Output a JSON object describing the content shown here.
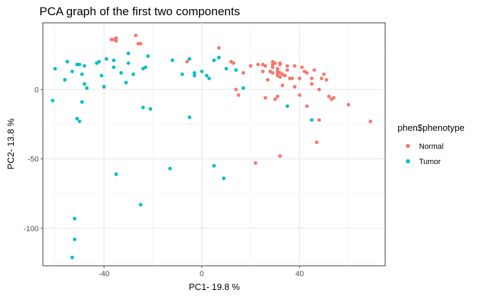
{
  "chart_data": {
    "type": "scatter",
    "title": "PCA graph of the first two components",
    "xlabel": "PC1- 19.8 %",
    "ylabel": "PC2- 13.8 %",
    "xlim": [
      -65,
      75
    ],
    "ylim": [
      -127,
      48
    ],
    "x_ticks": [
      -40,
      0,
      40
    ],
    "y_ticks": [
      -100,
      -50,
      0
    ],
    "grid": true,
    "legend": {
      "title": "phen$phenotype",
      "placement": "right"
    },
    "series": [
      {
        "name": "Normal",
        "color": "#F8766D",
        "points": [
          [
            -37,
            36
          ],
          [
            -36,
            36
          ],
          [
            -35,
            37
          ],
          [
            -35,
            35
          ],
          [
            -27,
            39
          ],
          [
            -26,
            33
          ],
          [
            -25,
            33
          ],
          [
            -6,
            20
          ],
          [
            7,
            30
          ],
          [
            12,
            20
          ],
          [
            13,
            19
          ],
          [
            14,
            0
          ],
          [
            15,
            -4
          ],
          [
            17,
            12
          ],
          [
            20,
            17
          ],
          [
            23,
            18
          ],
          [
            22,
            -53
          ],
          [
            25,
            18
          ],
          [
            25,
            13
          ],
          [
            26,
            17
          ],
          [
            26,
            -6
          ],
          [
            27,
            7
          ],
          [
            28,
            13
          ],
          [
            29,
            18
          ],
          [
            29,
            16
          ],
          [
            29,
            12
          ],
          [
            29,
            20
          ],
          [
            30,
            -7
          ],
          [
            30,
            19
          ],
          [
            31,
            15
          ],
          [
            31,
            13
          ],
          [
            31,
            11
          ],
          [
            31,
            10
          ],
          [
            31,
            -5
          ],
          [
            32,
            19
          ],
          [
            32,
            18
          ],
          [
            32,
            12
          ],
          [
            32,
            9
          ],
          [
            32,
            -48
          ],
          [
            33,
            11
          ],
          [
            33,
            3
          ],
          [
            34,
            10
          ],
          [
            35,
            17
          ],
          [
            35,
            14
          ],
          [
            36,
            8
          ],
          [
            37,
            8
          ],
          [
            38,
            17
          ],
          [
            38,
            2
          ],
          [
            40,
            8
          ],
          [
            40,
            -4
          ],
          [
            41,
            16
          ],
          [
            42,
            13
          ],
          [
            43,
            12
          ],
          [
            43,
            -12
          ],
          [
            45,
            8
          ],
          [
            45,
            4
          ],
          [
            46,
            14
          ],
          [
            47,
            -38
          ],
          [
            48,
            -22
          ],
          [
            48,
            0
          ],
          [
            49,
            8
          ],
          [
            50,
            11
          ],
          [
            51,
            7
          ],
          [
            52,
            -5
          ],
          [
            53,
            -7
          ],
          [
            54,
            -6
          ],
          [
            60,
            -11
          ],
          [
            69,
            -23
          ]
        ]
      },
      {
        "name": "Tumor",
        "color": "#00BFC4",
        "points": [
          [
            -61,
            -8
          ],
          [
            -60,
            15
          ],
          [
            -56,
            7
          ],
          [
            -55,
            20
          ],
          [
            -53,
            13
          ],
          [
            -51,
            -21
          ],
          [
            -51,
            18
          ],
          [
            -50,
            18
          ],
          [
            -50,
            -23
          ],
          [
            -49,
            -9
          ],
          [
            -49,
            11
          ],
          [
            -48,
            4
          ],
          [
            -48,
            17
          ],
          [
            -47,
            1
          ],
          [
            -43,
            19
          ],
          [
            -42,
            20
          ],
          [
            -41,
            10
          ],
          [
            -40,
            2
          ],
          [
            -39,
            22
          ],
          [
            -36,
            21
          ],
          [
            -36,
            16
          ],
          [
            -35,
            -61
          ],
          [
            -33,
            12
          ],
          [
            -31,
            5
          ],
          [
            -30,
            26
          ],
          [
            -30,
            19
          ],
          [
            -28,
            11
          ],
          [
            -25,
            -83
          ],
          [
            -24,
            -13
          ],
          [
            -24,
            15
          ],
          [
            -23,
            16
          ],
          [
            -22,
            24
          ],
          [
            -21,
            -14
          ],
          [
            -13,
            -57
          ],
          [
            -12,
            21
          ],
          [
            -8,
            11
          ],
          [
            -5,
            22
          ],
          [
            -5,
            -20
          ],
          [
            -3,
            10
          ],
          [
            -3,
            12
          ],
          [
            0,
            13
          ],
          [
            2,
            10
          ],
          [
            3,
            8
          ],
          [
            5,
            -55
          ],
          [
            5,
            21
          ],
          [
            7,
            23
          ],
          [
            9,
            -64
          ],
          [
            10,
            15
          ],
          [
            14,
            14
          ],
          [
            17,
            1
          ],
          [
            35,
            -12
          ],
          [
            45,
            -22
          ],
          [
            -52,
            -93
          ],
          [
            -52,
            -108
          ],
          [
            -53,
            -121
          ]
        ]
      }
    ]
  }
}
